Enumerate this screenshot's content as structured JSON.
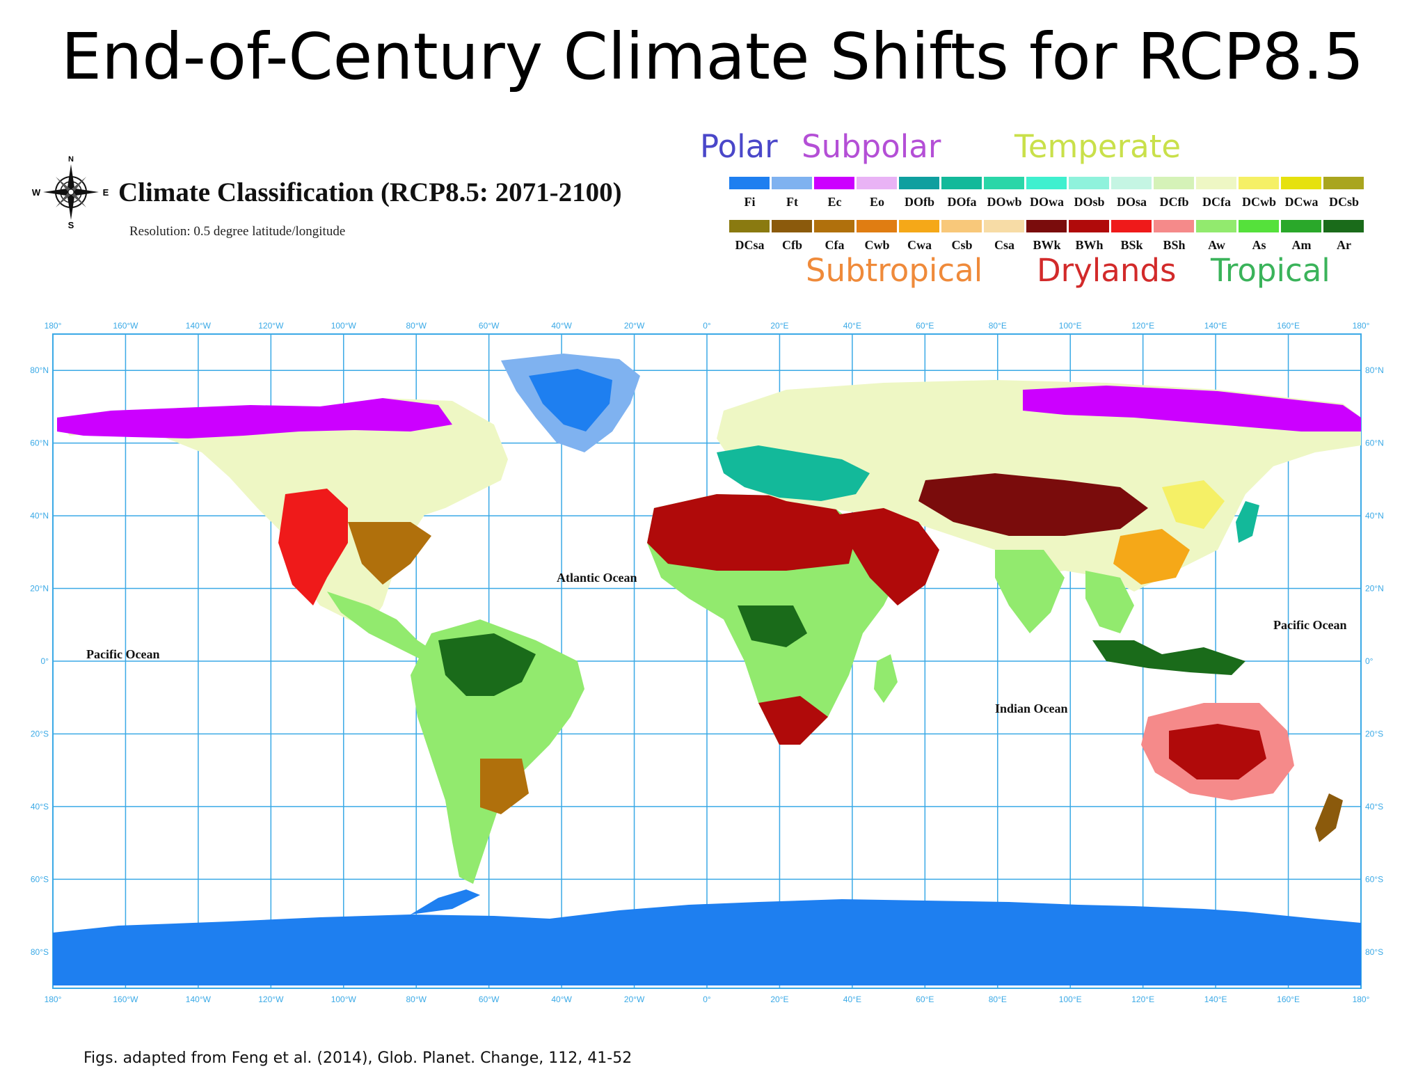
{
  "slide": {
    "title": "End-of-Century Climate Shifts for RCP8.5",
    "source": "Figs. adapted from Feng et al. (2014), Glob. Planet. Change, 112, 41-52"
  },
  "map": {
    "heading": "Climate Classification (RCP8.5: 2071-2100)",
    "resolution": "Resolution: 0.5 degree latitude/longitude",
    "compass": {
      "north": "N",
      "south": "S",
      "east": "E",
      "west": "W"
    },
    "ocean_labels": {
      "atlantic": "Atlantic Ocean",
      "indian": "Indian Ocean",
      "pacific_west": "Pacific Ocean",
      "pacific_east": "Pacific Ocean"
    },
    "lon_ticks": [
      "180°",
      "160°W",
      "140°W",
      "120°W",
      "100°W",
      "80°W",
      "60°W",
      "40°W",
      "20°W",
      "0°",
      "20°E",
      "40°E",
      "60°E",
      "80°E",
      "100°E",
      "120°E",
      "140°E",
      "160°E",
      "180°"
    ],
    "lat_ticks": [
      "80°N",
      "60°N",
      "40°N",
      "20°N",
      "0°",
      "20°S",
      "40°S",
      "60°S",
      "80°S"
    ],
    "lat_values": [
      80,
      60,
      40,
      20,
      0,
      -20,
      -40,
      -60,
      -80
    ],
    "ocean_color": "#ffffff",
    "grid_color": "#3aa9e6"
  },
  "legend": {
    "groups": {
      "polar": {
        "label": "Polar",
        "color": "#4a47c9"
      },
      "subpolar": {
        "label": "Subpolar",
        "color": "#b44fd6"
      },
      "temperate": {
        "label": "Temperate",
        "color": "#c9e04a"
      },
      "subtropical": {
        "label": "Subtropical",
        "color": "#ef8a3a"
      },
      "drylands": {
        "label": "Drylands",
        "color": "#d22a2a"
      },
      "tropical": {
        "label": "Tropical",
        "color": "#3ab35a"
      }
    },
    "row1": [
      {
        "code": "Fi",
        "color": "#1e7ff0"
      },
      {
        "code": "Ft",
        "color": "#7fb2f0"
      },
      {
        "code": "Ec",
        "color": "#cc00ff"
      },
      {
        "code": "Eo",
        "color": "#e9b3f5"
      },
      {
        "code": "DOfb",
        "color": "#0f9f9f"
      },
      {
        "code": "DOfa",
        "color": "#13b99a"
      },
      {
        "code": "DOwb",
        "color": "#2ad6a8"
      },
      {
        "code": "DOwa",
        "color": "#3ff0cf"
      },
      {
        "code": "DOsb",
        "color": "#8ff2dc"
      },
      {
        "code": "DOsa",
        "color": "#c5f5e3"
      },
      {
        "code": "DCfb",
        "color": "#d5f2b8"
      },
      {
        "code": "DCfa",
        "color": "#eef7c4"
      },
      {
        "code": "DCwb",
        "color": "#f5f066"
      },
      {
        "code": "DCwa",
        "color": "#e6e10e"
      },
      {
        "code": "DCsb",
        "color": "#a9a51e"
      }
    ],
    "row2": [
      {
        "code": "DCsa",
        "color": "#8a7a10"
      },
      {
        "code": "Cfb",
        "color": "#8b5a0c"
      },
      {
        "code": "Cfa",
        "color": "#b0700c"
      },
      {
        "code": "Cwb",
        "color": "#e07d12"
      },
      {
        "code": "Cwa",
        "color": "#f5a818"
      },
      {
        "code": "Csb",
        "color": "#f8c87a"
      },
      {
        "code": "Csa",
        "color": "#f7dca6"
      },
      {
        "code": "BWk",
        "color": "#7a0c0c"
      },
      {
        "code": "BWh",
        "color": "#b00a0a"
      },
      {
        "code": "BSk",
        "color": "#ef1a1a"
      },
      {
        "code": "BSh",
        "color": "#f58a8a"
      },
      {
        "code": "Aw",
        "color": "#92ea6e"
      },
      {
        "code": "As",
        "color": "#55e13b"
      },
      {
        "code": "Am",
        "color": "#2aa82a"
      },
      {
        "code": "Ar",
        "color": "#1a6b1a"
      }
    ]
  }
}
